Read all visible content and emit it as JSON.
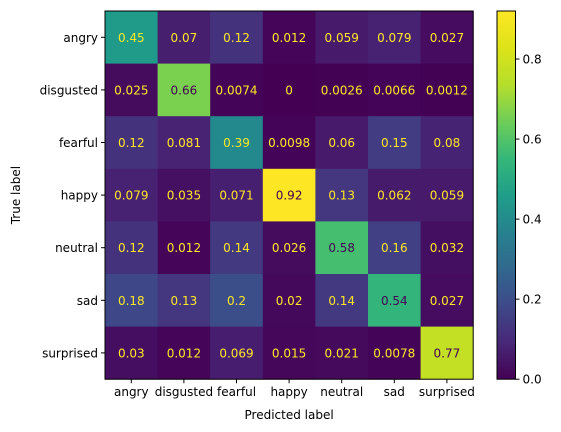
{
  "chart_data": {
    "type": "heatmap",
    "title": "",
    "xlabel": "Predicted label",
    "ylabel": "True label",
    "x_categories": [
      "angry",
      "disgusted",
      "fearful",
      "happy",
      "neutral",
      "sad",
      "surprised"
    ],
    "y_categories": [
      "angry",
      "disgusted",
      "fearful",
      "happy",
      "neutral",
      "sad",
      "surprised"
    ],
    "cell_labels": [
      [
        "0.45",
        "0.07",
        "0.12",
        "0.012",
        "0.059",
        "0.079",
        "0.027"
      ],
      [
        "0.025",
        "0.66",
        "0.0074",
        "0",
        "0.0026",
        "0.0066",
        "0.0012"
      ],
      [
        "0.12",
        "0.081",
        "0.39",
        "0.0098",
        "0.06",
        "0.15",
        "0.08"
      ],
      [
        "0.079",
        "0.035",
        "0.071",
        "0.92",
        "0.13",
        "0.062",
        "0.059"
      ],
      [
        "0.12",
        "0.012",
        "0.14",
        "0.026",
        "0.58",
        "0.16",
        "0.032"
      ],
      [
        "0.18",
        "0.13",
        "0.2",
        "0.02",
        "0.14",
        "0.54",
        "0.027"
      ],
      [
        "0.03",
        "0.012",
        "0.069",
        "0.015",
        "0.021",
        "0.0078",
        "0.77"
      ]
    ],
    "values": [
      [
        0.45,
        0.07,
        0.12,
        0.012,
        0.059,
        0.079,
        0.027
      ],
      [
        0.025,
        0.66,
        0.0074,
        0,
        0.0026,
        0.0066,
        0.0012
      ],
      [
        0.12,
        0.081,
        0.39,
        0.0098,
        0.06,
        0.15,
        0.08
      ],
      [
        0.079,
        0.035,
        0.071,
        0.92,
        0.13,
        0.062,
        0.059
      ],
      [
        0.12,
        0.012,
        0.14,
        0.026,
        0.58,
        0.16,
        0.032
      ],
      [
        0.18,
        0.13,
        0.2,
        0.02,
        0.14,
        0.54,
        0.027
      ],
      [
        0.03,
        0.012,
        0.069,
        0.015,
        0.021,
        0.0078,
        0.77
      ]
    ],
    "colormap": "viridis",
    "vmin": 0,
    "vmax": 0.92,
    "colorbar": {
      "ticks": [
        0.0,
        0.2,
        0.4,
        0.6,
        0.8
      ],
      "tick_labels": [
        "0.0",
        "0.2",
        "0.4",
        "0.6",
        "0.8"
      ]
    },
    "text_color_dark_cells": "#fde725",
    "text_color_light_cells": "#440154"
  }
}
